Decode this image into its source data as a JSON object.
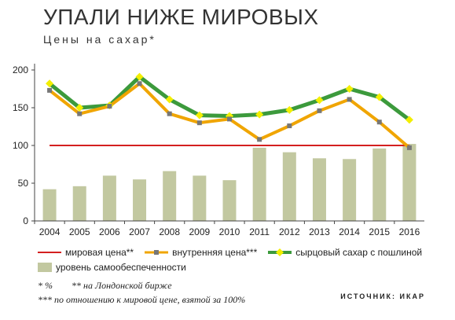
{
  "title": "УПАЛИ НИЖЕ МИРОВЫХ",
  "subtitle": "Цены на сахар*",
  "footnotes": {
    "line1_a": "* %",
    "line1_b": "** на Лондонской бирже",
    "line2": "*** по отношению к мировой цене, взятой за 100%"
  },
  "source": "ИСТОЧНИК: ИКАР",
  "colors": {
    "world_price": "#d42020",
    "domestic": "#f0a500",
    "raw_sugar": "#3c9a3c",
    "bars": "#c2c8a0",
    "marker_domestic": "#777777",
    "marker_raw": "#f2ee00"
  },
  "chart_data": {
    "type": "bar",
    "categories": [
      "2004",
      "2005",
      "2006",
      "2007",
      "2008",
      "2009",
      "2010",
      "2011",
      "2012",
      "2013",
      "2014",
      "2015",
      "2016"
    ],
    "ylim": [
      0,
      200
    ],
    "yticks": [
      0,
      50,
      100,
      150,
      200
    ],
    "grid": false,
    "series": [
      {
        "name": "уровень самообеспеченности",
        "kind": "bar",
        "values": [
          42,
          46,
          60,
          55,
          66,
          60,
          54,
          97,
          91,
          83,
          82,
          96,
          102
        ]
      },
      {
        "name": "мировая цена**",
        "kind": "line",
        "values": [
          100,
          100,
          100,
          100,
          100,
          100,
          100,
          100,
          100,
          100,
          100,
          100,
          100
        ]
      },
      {
        "name": "внутренняя цена***",
        "kind": "line",
        "values": [
          173,
          142,
          152,
          182,
          142,
          130,
          135,
          108,
          126,
          146,
          161,
          131,
          97
        ]
      },
      {
        "name": "сырцовый сахар с пошлиной",
        "kind": "line",
        "values": [
          182,
          150,
          153,
          191,
          161,
          140,
          139,
          141,
          147,
          160,
          175,
          164,
          134
        ]
      }
    ],
    "legend_placement": "bottom"
  }
}
